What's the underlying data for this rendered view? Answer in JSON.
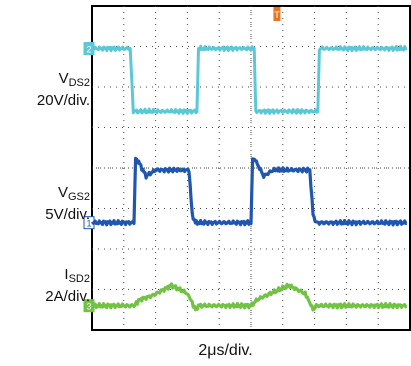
{
  "chart_data": {
    "type": "line",
    "title": "",
    "xlabel": "2μs/div.",
    "x_unit_per_div": 2,
    "x_unit": "μs",
    "trigger_marker": "T",
    "grid": true,
    "divisions": {
      "x": 10,
      "y": 8
    },
    "series": [
      {
        "name": "VDS2",
        "channel": "2",
        "scale": "20V/div.",
        "color": "#5bc8d8",
        "label_main": "V",
        "label_sub": "DS2",
        "label_scale": "20V/div.",
        "points": [
          [
            0,
            0
          ],
          [
            1.2,
            0
          ],
          [
            1.3,
            -1.55
          ],
          [
            3.3,
            -1.55
          ],
          [
            3.35,
            0
          ],
          [
            5.1,
            0
          ],
          [
            5.15,
            -1.55
          ],
          [
            7.1,
            -1.55
          ],
          [
            7.15,
            0
          ],
          [
            9.9,
            0
          ]
        ]
      },
      {
        "name": "VGS2",
        "channel": "1",
        "scale": "5V/div.",
        "color": "#1f57b0",
        "label_main": "V",
        "label_sub": "GS2",
        "label_scale": "5V/div.",
        "points": [
          [
            0,
            0
          ],
          [
            1.32,
            0
          ],
          [
            1.37,
            1.6
          ],
          [
            1.5,
            1.45
          ],
          [
            1.7,
            1.15
          ],
          [
            2.0,
            1.3
          ],
          [
            3.05,
            1.3
          ],
          [
            3.15,
            0.2
          ],
          [
            3.25,
            0
          ],
          [
            5.0,
            0
          ],
          [
            5.05,
            1.6
          ],
          [
            5.2,
            1.45
          ],
          [
            5.4,
            1.15
          ],
          [
            5.7,
            1.3
          ],
          [
            6.85,
            1.3
          ],
          [
            6.95,
            0.2
          ],
          [
            7.05,
            0
          ],
          [
            9.9,
            0
          ]
        ]
      },
      {
        "name": "ISD2",
        "channel": "3",
        "scale": "2A/div.",
        "color": "#72c243",
        "label_main": "I",
        "label_sub": "SD2",
        "label_scale": "2A/div.",
        "points": [
          [
            0,
            0
          ],
          [
            1.32,
            0
          ],
          [
            1.5,
            0.15
          ],
          [
            1.9,
            0.25
          ],
          [
            2.5,
            0.5
          ],
          [
            3.0,
            0.3
          ],
          [
            3.15,
            0.08
          ],
          [
            3.25,
            -0.1
          ],
          [
            3.35,
            0
          ],
          [
            5.0,
            0
          ],
          [
            5.2,
            0.15
          ],
          [
            5.6,
            0.3
          ],
          [
            6.2,
            0.5
          ],
          [
            6.7,
            0.3
          ],
          [
            6.85,
            0.08
          ],
          [
            6.95,
            -0.1
          ],
          [
            7.05,
            0
          ],
          [
            9.9,
            0
          ]
        ]
      }
    ]
  }
}
